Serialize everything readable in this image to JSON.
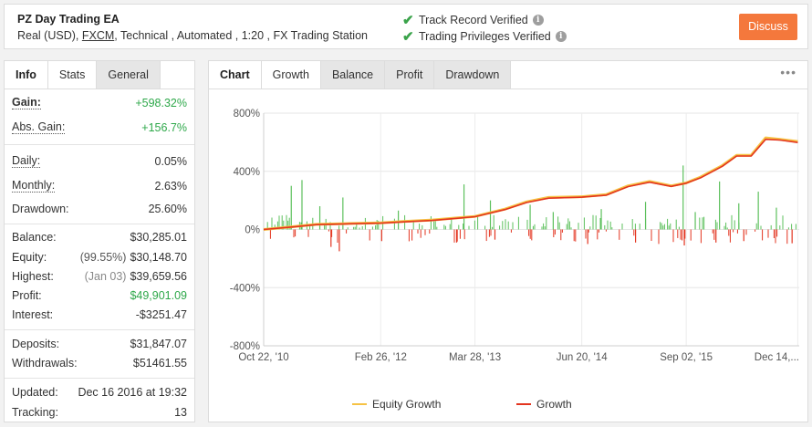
{
  "header": {
    "system_name": "PZ Day Trading EA",
    "account_type": "Real (USD),",
    "broker": "FXCM",
    "details_rest": ", Technical , Automated , 1:20 , FX Trading Station",
    "verify_track": "Track Record Verified",
    "verify_privileges": "Trading Privileges Verified",
    "info_glyph": "i",
    "discuss_label": "Discuss"
  },
  "left_tabs": [
    "Info",
    "Stats",
    "General"
  ],
  "stats": {
    "gain": {
      "label": "Gain:",
      "value": "+598.32%"
    },
    "abs_gain": {
      "label": "Abs. Gain:",
      "value": "+156.7%"
    },
    "daily": {
      "label": "Daily:",
      "value": "0.05%"
    },
    "monthly": {
      "label": "Monthly:",
      "value": "2.63%"
    },
    "drawdown": {
      "label": "Drawdown:",
      "value": "25.60%"
    },
    "balance": {
      "label": "Balance:",
      "value": "$30,285.01"
    },
    "equity": {
      "label": "Equity:",
      "note": "(99.55%)",
      "value": "$30,148.70"
    },
    "highest": {
      "label": "Highest:",
      "note": "(Jan 03)",
      "value": "$39,659.56"
    },
    "profit": {
      "label": "Profit:",
      "value": "$49,901.09"
    },
    "interest": {
      "label": "Interest:",
      "value": "-$3251.47"
    },
    "deposits": {
      "label": "Deposits:",
      "value": "$31,847.07"
    },
    "withdrawals": {
      "label": "Withdrawals:",
      "value": "$51461.55"
    },
    "updated": {
      "label": "Updated:",
      "value": "Dec 16 2016 at 19:32"
    },
    "tracking": {
      "label": "Tracking:",
      "value": "13"
    }
  },
  "chart_tabs": [
    "Chart",
    "Growth",
    "Balance",
    "Profit",
    "Drawdown"
  ],
  "more_glyph": "•••",
  "colors": {
    "equity_growth": "#f6c244",
    "growth": "#e3341f",
    "bar_positive": "#5cc05c",
    "bar_negative": "#e3341f",
    "discuss_button": "#f4783c",
    "positive_text": "#2ea84a"
  },
  "chart_data": {
    "type": "line",
    "title": "",
    "xlabel": "",
    "ylabel": "",
    "ylim": [
      -800,
      800
    ],
    "y_ticks": [
      "800%",
      "400%",
      "0%",
      "-400%",
      "-800%"
    ],
    "x_ticks": [
      "Oct 22, '10",
      "Feb 26, '12",
      "Mar 28, '13",
      "Jun 20, '14",
      "Sep 02, '15",
      "Dec 14,..."
    ],
    "grid": true,
    "legend_position": "bottom",
    "series": [
      {
        "name": "Equity Growth",
        "x": [
          "2010-10-22",
          "2011-03-01",
          "2011-06-01",
          "2011-10-01",
          "2012-02-26",
          "2012-06-01",
          "2012-10-01",
          "2013-03-28",
          "2013-08-01",
          "2013-11-01",
          "2014-02-01",
          "2014-06-20",
          "2014-10-01",
          "2015-01-01",
          "2015-04-01",
          "2015-07-01",
          "2015-09-02",
          "2015-11-01",
          "2016-02-01",
          "2016-04-01",
          "2016-06-01",
          "2016-08-01",
          "2016-10-01",
          "2016-12-14"
        ],
        "values": [
          0,
          20,
          35,
          40,
          45,
          55,
          65,
          90,
          140,
          190,
          220,
          225,
          240,
          300,
          330,
          300,
          320,
          360,
          440,
          510,
          510,
          630,
          620,
          605
        ]
      },
      {
        "name": "Growth",
        "x": [
          "2010-10-22",
          "2011-03-01",
          "2011-06-01",
          "2011-10-01",
          "2012-02-26",
          "2012-06-01",
          "2012-10-01",
          "2013-03-28",
          "2013-08-01",
          "2013-11-01",
          "2014-02-01",
          "2014-06-20",
          "2014-10-01",
          "2015-01-01",
          "2015-04-01",
          "2015-07-01",
          "2015-09-02",
          "2015-11-01",
          "2016-02-01",
          "2016-04-01",
          "2016-06-01",
          "2016-08-01",
          "2016-10-01",
          "2016-12-14"
        ],
        "values": [
          0,
          18,
          33,
          38,
          43,
          52,
          62,
          88,
          137,
          186,
          215,
          222,
          236,
          295,
          325,
          296,
          318,
          355,
          435,
          505,
          505,
          620,
          615,
          598
        ]
      }
    ],
    "bars": {
      "description_series": "daily gain bars",
      "positive_spikes": [
        {
          "x": "2011-02-15",
          "value": 300
        },
        {
          "x": "2011-04-01",
          "value": 340
        },
        {
          "x": "2011-06-15",
          "value": 160
        },
        {
          "x": "2011-09-20",
          "value": 220
        },
        {
          "x": "2012-05-10",
          "value": 130
        },
        {
          "x": "2013-02-10",
          "value": 310
        },
        {
          "x": "2013-06-01",
          "value": 200
        },
        {
          "x": "2013-11-15",
          "value": 170
        },
        {
          "x": "2014-02-20",
          "value": 120
        },
        {
          "x": "2014-09-10",
          "value": 140
        },
        {
          "x": "2015-03-15",
          "value": 190
        },
        {
          "x": "2015-08-20",
          "value": 440
        },
        {
          "x": "2015-10-10",
          "value": 120
        },
        {
          "x": "2016-01-20",
          "value": 330
        },
        {
          "x": "2016-04-10",
          "value": 180
        },
        {
          "x": "2016-07-01",
          "value": 260
        },
        {
          "x": "2016-09-15",
          "value": 150
        }
      ],
      "negative_spikes": [
        {
          "x": "2011-08-01",
          "value": -120
        },
        {
          "x": "2011-09-05",
          "value": -150
        },
        {
          "x": "2012-03-01",
          "value": -80
        },
        {
          "x": "2013-01-10",
          "value": -90
        },
        {
          "x": "2013-06-20",
          "value": -70
        },
        {
          "x": "2014-07-15",
          "value": -100
        },
        {
          "x": "2015-02-01",
          "value": -90
        },
        {
          "x": "2015-08-25",
          "value": -110
        },
        {
          "x": "2016-01-05",
          "value": -90
        },
        {
          "x": "2016-05-01",
          "value": -80
        },
        {
          "x": "2016-11-20",
          "value": -95
        }
      ]
    }
  }
}
